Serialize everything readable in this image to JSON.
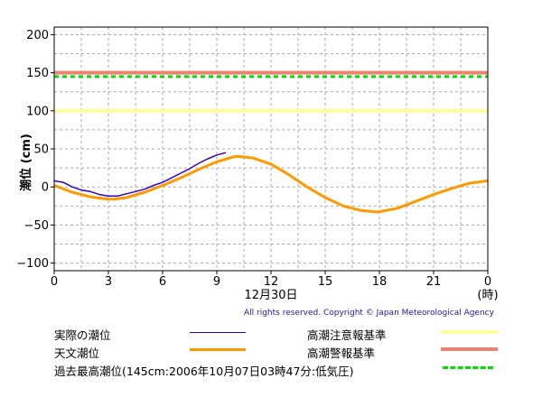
{
  "chart_data": {
    "type": "line",
    "ylabel": "潮位 (cm)",
    "ylim": [
      -110,
      210
    ],
    "xlim": [
      0,
      24
    ],
    "yticks": [
      "200",
      "150",
      "100",
      "50",
      "0",
      "−50",
      "−100"
    ],
    "ytick_values": [
      200,
      150,
      100,
      50,
      0,
      -50,
      -100
    ],
    "xticks": [
      "0",
      "3",
      "6",
      "9",
      "12",
      "15",
      "18",
      "21",
      "0"
    ],
    "xtick_values": [
      0,
      3,
      6,
      9,
      12,
      15,
      18,
      21,
      24
    ],
    "xaxis_date": "12月30日",
    "xaxis_unit": "(時)",
    "grid": true,
    "reference_lines": [
      {
        "name": "高潮注意報基準",
        "value": 100,
        "color": "#ffff99",
        "style": "solid"
      },
      {
        "name": "高潮警報基準",
        "value": 150,
        "color": "#f08070",
        "style": "solid"
      },
      {
        "name": "過去最高潮位(145cm:2006年10月07日03時47分:低気圧)",
        "value": 145,
        "color": "#00dd00",
        "style": "dashed"
      }
    ],
    "series": [
      {
        "name": "天文潮位",
        "color": "#ff9900",
        "x": [
          0,
          1,
          2,
          3,
          3.3,
          4,
          5,
          6,
          7,
          8,
          9,
          10,
          10.2,
          11,
          12,
          13,
          14,
          15,
          16,
          17,
          17.9,
          19,
          20,
          21,
          22,
          23,
          24
        ],
        "y": [
          2,
          -7,
          -13,
          -16,
          -16,
          -14,
          -7,
          2,
          12,
          23,
          33,
          40,
          40,
          38,
          30,
          16,
          0,
          -14,
          -25,
          -31,
          -33,
          -28,
          -19,
          -10,
          -2,
          5,
          8
        ]
      },
      {
        "name": "実際の潮位",
        "color": "#3300cc",
        "x": [
          0,
          0.5,
          1,
          1.5,
          2,
          2.5,
          3,
          3.5,
          4,
          4.5,
          5,
          5.5,
          6,
          6.5,
          7,
          7.5,
          8,
          8.5,
          9,
          9.5
        ],
        "y": [
          8,
          6,
          0,
          -4,
          -6,
          -10,
          -12,
          -12,
          -9,
          -6,
          -3,
          2,
          6,
          12,
          18,
          24,
          31,
          37,
          42,
          45
        ]
      }
    ]
  },
  "copyright": "All rights reserved. Copyright © Japan Meteorological Agency",
  "legend": {
    "actual_label": "実際の潮位",
    "astronomical_label": "天文潮位",
    "caution_label": "高潮注意報基準",
    "warning_label": "高潮警報基準",
    "record_label": "過去最高潮位(145cm:2006年10月07日03時47分:低気圧)"
  }
}
